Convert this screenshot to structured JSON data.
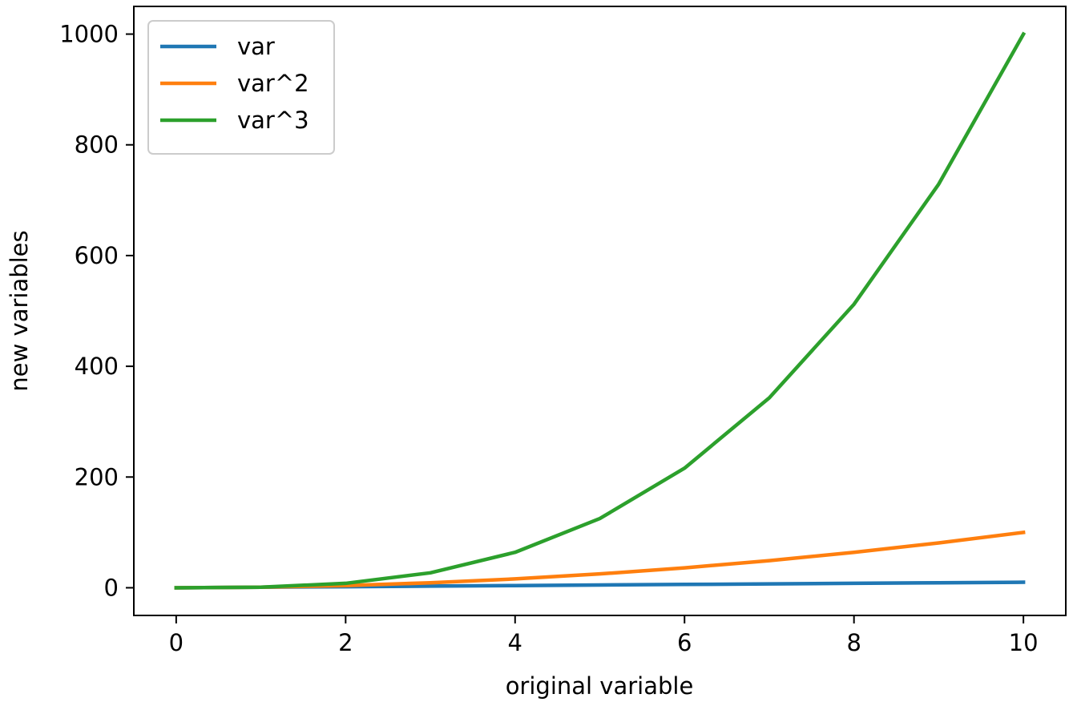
{
  "chart_data": {
    "type": "line",
    "title": "",
    "xlabel": "original variable",
    "ylabel": "new variables",
    "xlim": [
      -0.5,
      10.5
    ],
    "ylim": [
      -50,
      1050
    ],
    "xticks": [
      0,
      2,
      4,
      6,
      8,
      10
    ],
    "yticks": [
      0,
      200,
      400,
      600,
      800,
      1000
    ],
    "grid": false,
    "legend_position": "top-left",
    "x": [
      0,
      1,
      2,
      3,
      4,
      5,
      6,
      7,
      8,
      9,
      10
    ],
    "series": [
      {
        "name": "var",
        "color": "#1f77b4",
        "values": [
          0,
          1,
          2,
          3,
          4,
          5,
          6,
          7,
          8,
          9,
          10
        ]
      },
      {
        "name": "var^2",
        "color": "#ff7f0e",
        "values": [
          0,
          1,
          4,
          9,
          16,
          25,
          36,
          49,
          64,
          81,
          100
        ]
      },
      {
        "name": "var^3",
        "color": "#2ca02c",
        "values": [
          0,
          1,
          8,
          27,
          64,
          125,
          216,
          343,
          512,
          729,
          1000
        ]
      }
    ]
  }
}
